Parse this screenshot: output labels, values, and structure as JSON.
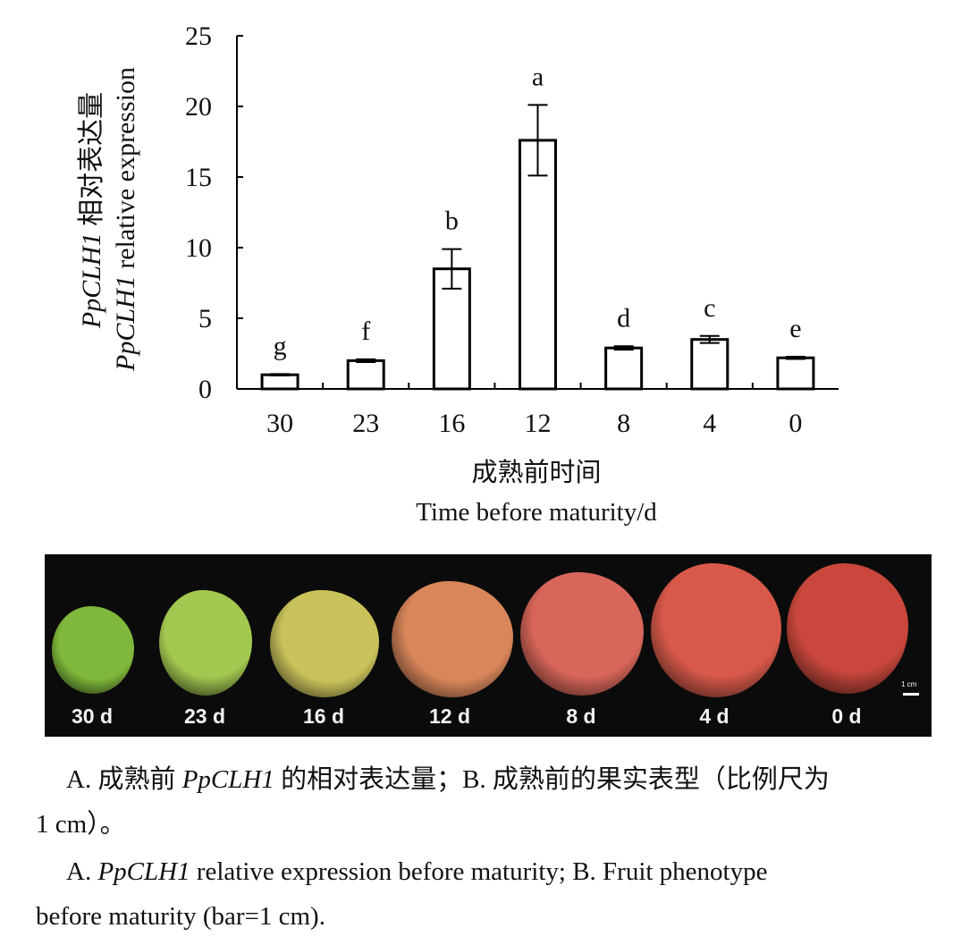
{
  "chart_data": {
    "type": "bar",
    "categories": [
      "30",
      "23",
      "16",
      "12",
      "8",
      "4",
      "0"
    ],
    "values": [
      1.0,
      2.0,
      8.5,
      17.6,
      2.9,
      3.5,
      2.2
    ],
    "errors": [
      0.05,
      0.1,
      1.4,
      2.5,
      0.12,
      0.25,
      0.08
    ],
    "significance": [
      "g",
      "f",
      "b",
      "a",
      "d",
      "c",
      "e"
    ],
    "ylim": [
      0,
      25
    ],
    "yticks": [
      0,
      5,
      10,
      15,
      20,
      25
    ],
    "ylabel_italic": "PpCLH1",
    "ylabel_cn_suffix": " 相对表达量",
    "ylabel_en_suffix": " relative expression",
    "xlabel_cn": "成熟前时间",
    "xlabel_en": "Time before maturity/d",
    "grid": false,
    "bar_fill": "#ffffff",
    "bar_stroke": "#000000"
  },
  "photo_panel": {
    "labels": [
      "30 d",
      "23 d",
      "16 d",
      "12 d",
      "8 d",
      "4 d",
      "0 d"
    ],
    "scale_label": "1 cm",
    "fruit_colors": [
      "#7fb83a",
      "#a3c84f",
      "#c9c25a",
      "#d9865a",
      "#d9665a",
      "#d8594a",
      "#c9473c"
    ]
  },
  "caption": {
    "cn_prefix": "A. 成熟前 ",
    "cn_gene": "PpCLH1",
    "cn_rest": " 的相对表达量；B. 成熟前的果实表型（比例尺为",
    "cn_line2": "1 cm）。",
    "en_prefix": "A. ",
    "en_gene": "PpCLH1",
    "en_rest": " relative expression before maturity; B. Fruit phenotype",
    "en_line2": "before maturity (bar=1 cm)."
  }
}
